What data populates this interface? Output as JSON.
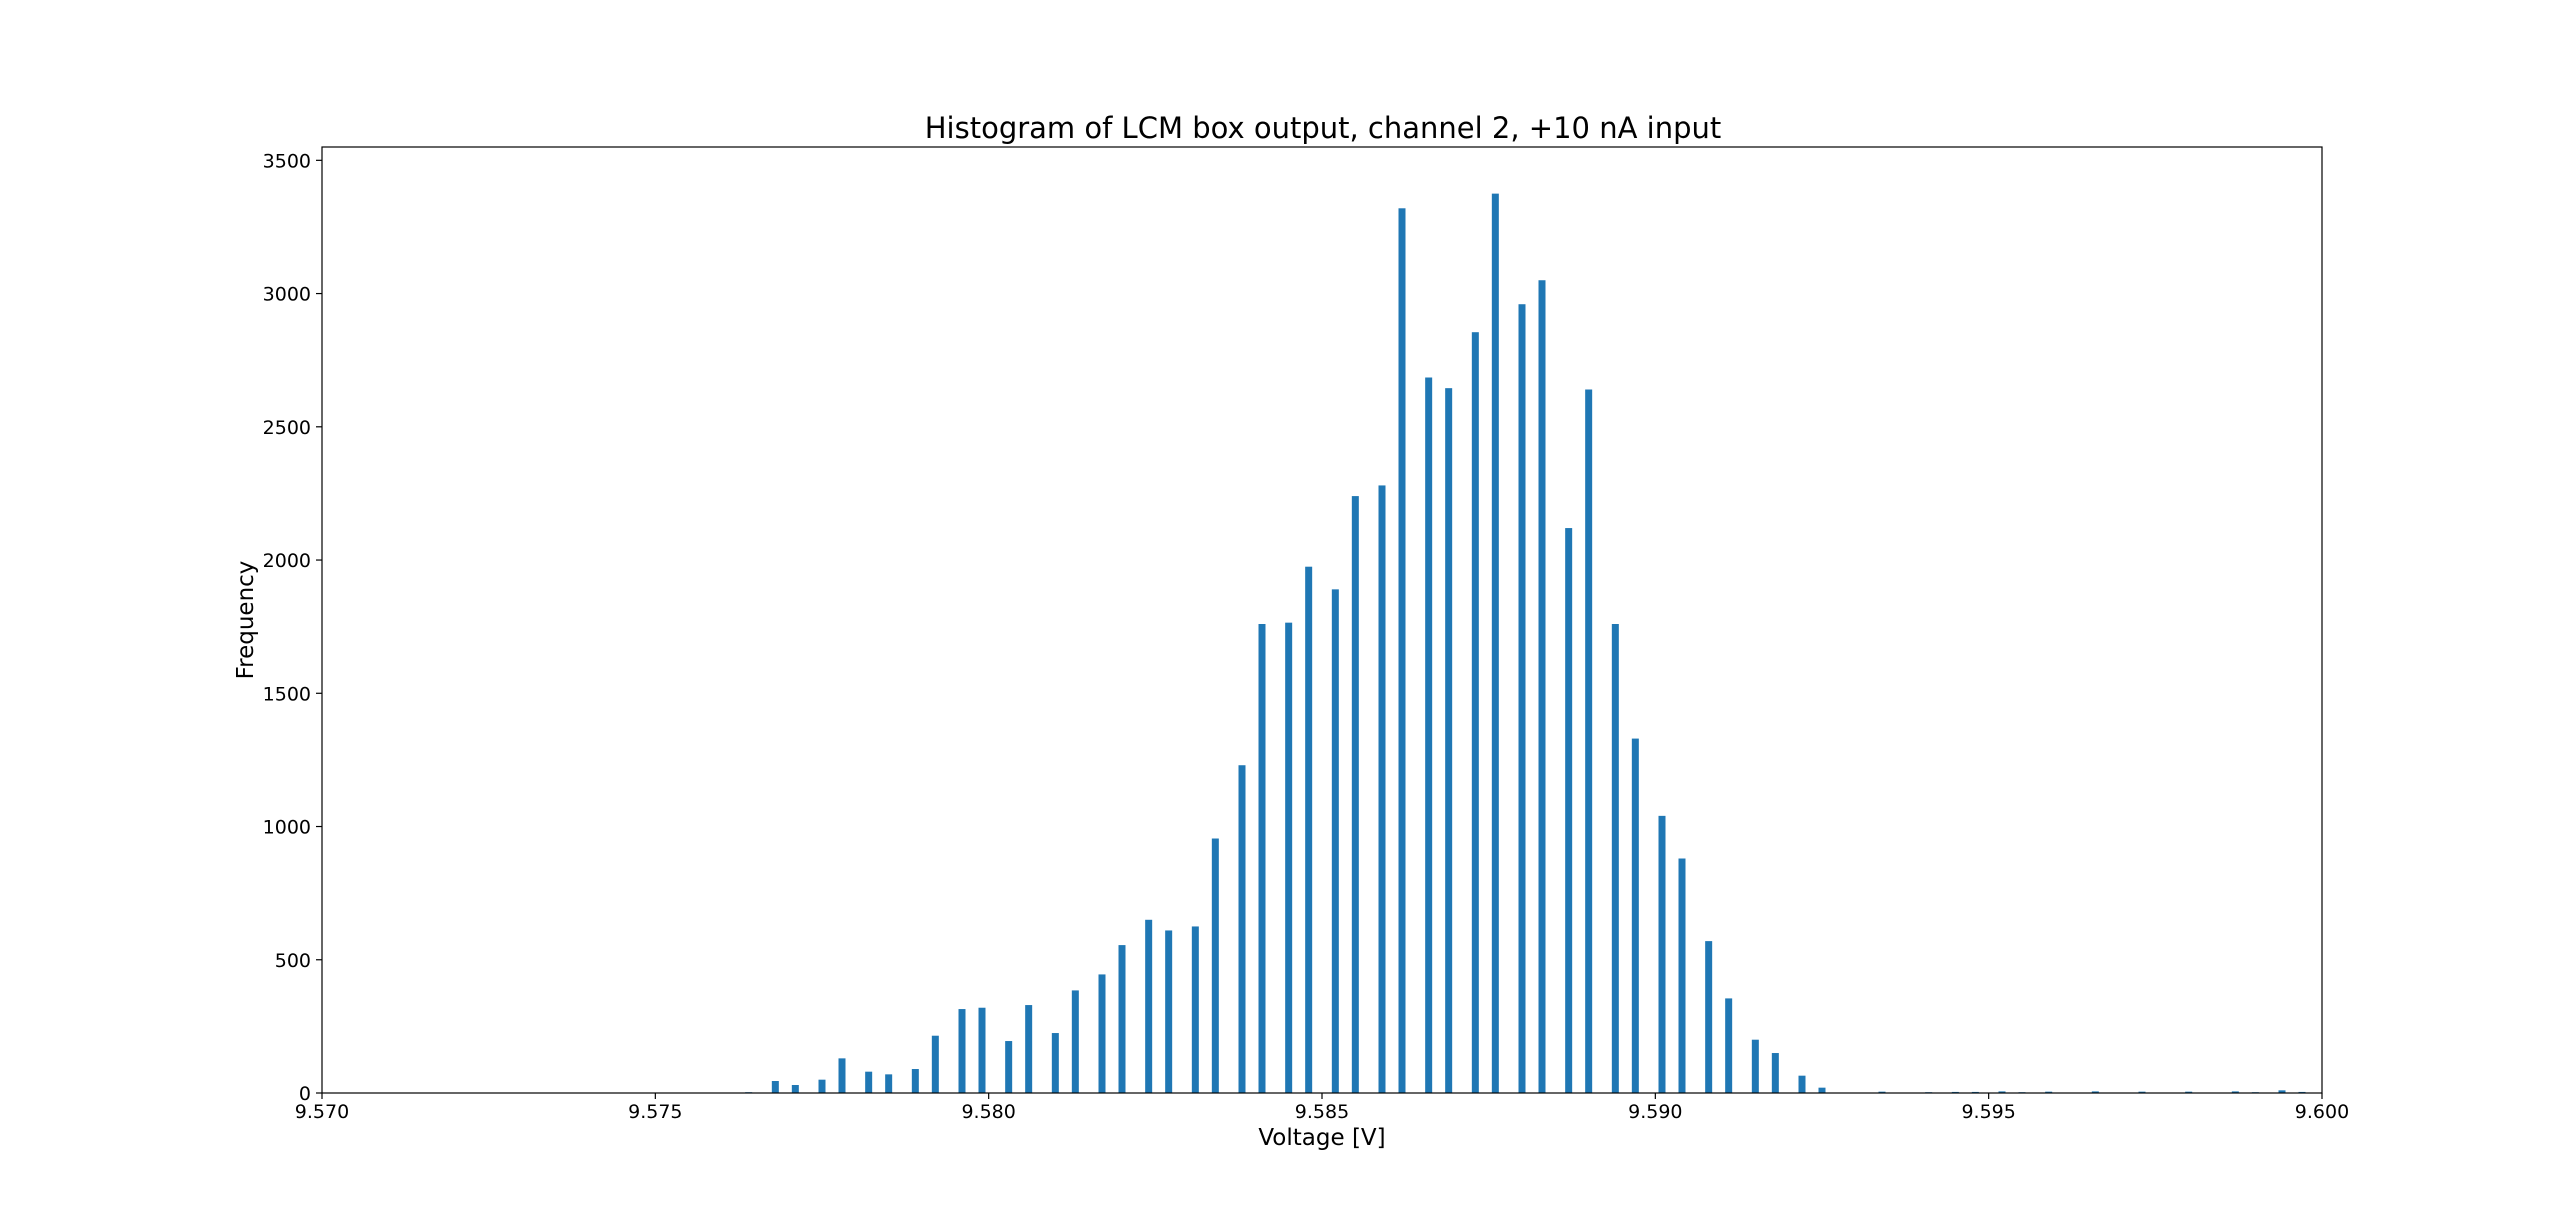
{
  "chart_data": {
    "type": "bar",
    "title": "Histogram of LCM box output, channel 2, +10 nA input",
    "xlabel": "Voltage [V]",
    "ylabel": "Frequency",
    "xlim": [
      9.57,
      9.6
    ],
    "ylim": [
      0,
      3550
    ],
    "x_ticks": [
      "9.570",
      "9.575",
      "9.580",
      "9.585",
      "9.590",
      "9.595",
      "9.600"
    ],
    "y_ticks": [
      "0",
      "500",
      "1000",
      "1500",
      "2000",
      "2500",
      "3000",
      "3500"
    ],
    "bar_color": "#1f77b4",
    "grid": false,
    "series": [
      {
        "x": [
          9.5764,
          9.5768,
          9.5771,
          9.5775,
          9.5778,
          9.5782,
          9.5785,
          9.5789,
          9.5792,
          9.5796,
          9.5799,
          9.5803,
          9.5806,
          9.581,
          9.5813,
          9.5817,
          9.582,
          9.5824,
          9.5827,
          9.5831,
          9.5834,
          9.5838,
          9.5841,
          9.5845,
          9.5848,
          9.5852,
          9.5855,
          9.5859,
          9.5862,
          9.5866,
          9.5869,
          9.5873,
          9.5876,
          9.588,
          9.5883,
          9.5887,
          9.589,
          9.5894,
          9.5897,
          9.5901,
          9.5904,
          9.5908,
          9.5911,
          9.5915,
          9.5918,
          9.5922,
          9.5925,
          9.5934,
          9.5941,
          9.5945,
          9.5948,
          9.5952,
          9.5955,
          9.5959,
          9.5966,
          9.5973,
          9.598,
          9.5987,
          9.599,
          9.5994,
          9.5997
        ],
        "values": [
          3,
          45,
          30,
          50,
          130,
          80,
          70,
          90,
          215,
          315,
          320,
          195,
          330,
          225,
          385,
          445,
          555,
          650,
          610,
          625,
          955,
          1230,
          1760,
          1765,
          1975,
          1890,
          2240,
          2280,
          3320,
          2685,
          2645,
          2855,
          3375,
          2960,
          3050,
          2120,
          2640,
          1760,
          1330,
          1040,
          880,
          570,
          355,
          200,
          150,
          65,
          20,
          5,
          3,
          4,
          4,
          6,
          3,
          5,
          6,
          5,
          5,
          6,
          3,
          10,
          4
        ]
      }
    ]
  }
}
